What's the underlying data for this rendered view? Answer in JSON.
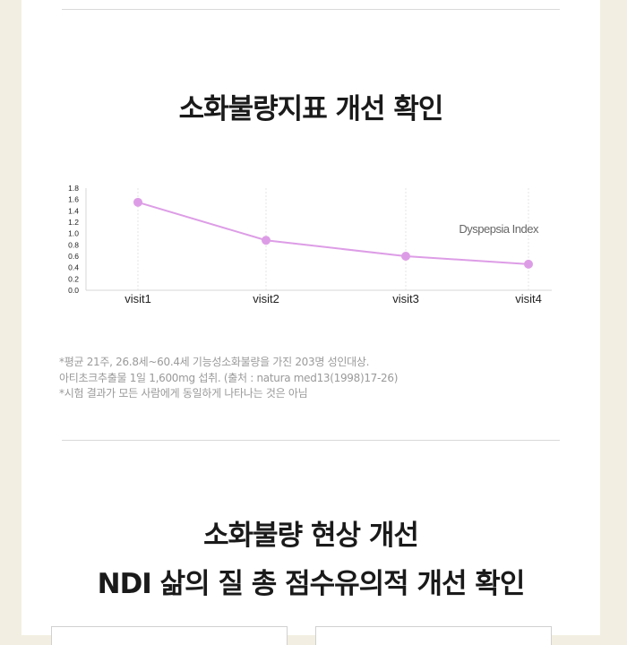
{
  "section1": {
    "title": "소화불량지표 개선 확인"
  },
  "chart_data": {
    "type": "line",
    "categories": [
      "visit1",
      "visit2",
      "visit3",
      "visit4"
    ],
    "series": [
      {
        "name": "Dyspepsia Index",
        "values": [
          1.55,
          0.88,
          0.6,
          0.46
        ]
      }
    ],
    "y_ticks": [
      "1.8",
      "1.6",
      "1.4",
      "1.2",
      "1.0",
      "0.8",
      "0.6",
      "0.4",
      "0.2",
      "0.0"
    ],
    "ylim": [
      0,
      1.8
    ],
    "grid": "vertical dashed",
    "legend_position": "right",
    "series_color": "#dd9de6"
  },
  "notes": [
    "*평균 21주, 26.8세~60.4세 기능성소화불량을 가진 203명 성인대상.",
    "아티초크추출물 1일 1,600mg 섭취. (출처 : natura med13(1998)17-26)",
    "*시험 결과가 모든 사람에게 동일하게 나타나는 것은 아님"
  ],
  "section2": {
    "title_line1": "소화불량 현상 개선",
    "title_line2": "NDI 삶의 질 총 점수유의적 개선 확인"
  }
}
